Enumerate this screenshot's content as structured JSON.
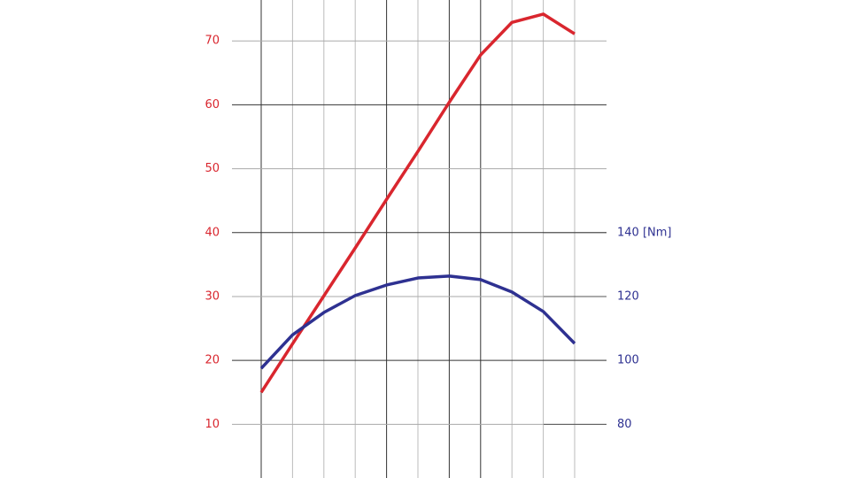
{
  "chart_data": {
    "type": "line",
    "categories": [
      null,
      null,
      null,
      null,
      null,
      null,
      null,
      null,
      null,
      null,
      null
    ],
    "series": [
      {
        "name": null,
        "color": "#d9262e",
        "values": [
          15,
          22.6,
          30.1,
          37.6,
          45.2,
          52.7,
          60.4,
          67.8,
          72.9,
          74.2,
          71.1
        ]
      },
      {
        "name": null,
        "color": "#2e3191",
        "axis": "y2",
        "values": [
          97.5,
          108,
          115,
          120.3,
          123.6,
          125.8,
          126.4,
          125.3,
          121.4,
          115.3,
          105.3
        ]
      }
    ],
    "ylim": [
      1.6,
      76.4
    ],
    "yticks": [
      10,
      20,
      30,
      40,
      50,
      60,
      70
    ],
    "y2lim": [
      63.2,
      212.8
    ],
    "y2ticks": [
      80,
      100,
      120,
      {
        "value": 140,
        "label": "140 [Nm]"
      }
    ],
    "grid": true
  }
}
